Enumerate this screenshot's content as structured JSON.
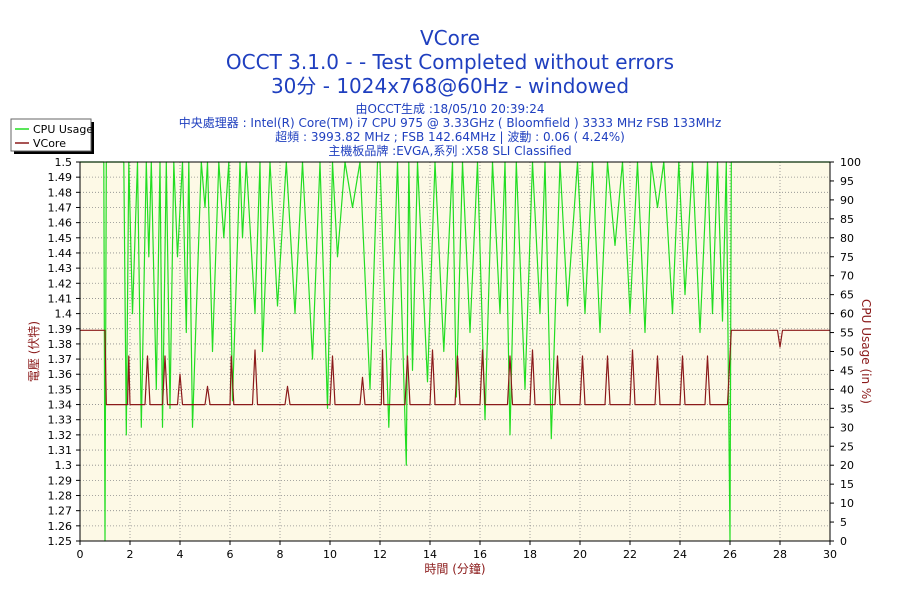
{
  "header": {
    "title": "VCore",
    "subtitle1": "OCCT 3.1.0 -  - Test Completed without errors",
    "subtitle2": "30分 - 1024x768@60Hz - windowed"
  },
  "info": {
    "line1": "由OCCT生成 :18/05/10 20:39:24",
    "line2": "中央處理器 : Intel(R) Core(TM) i7 CPU 975 @ 3.33GHz ( Bloomfield ) 3333 MHz FSB 133MHz",
    "line3": "超頻 : 3993.82 MHz ; FSB 142.64MHz | 波動 : 0.06 ( 4.24%)",
    "line4": "主機板品牌 :EVGA,系列 :X58 SLI Classified"
  },
  "colors": {
    "plot_bg": "#fdf9e6",
    "grid": "#8a8a8a",
    "cpu_usage": "#22dd22",
    "vcore": "#8b1a1a",
    "title": "#1f3fbf"
  },
  "chart_data": {
    "type": "line",
    "xlabel": "時間 (分鐘)",
    "ylabel": "電壓 (伏特)",
    "y2label": "CPU Usage (in %)",
    "xlim": [
      0,
      30
    ],
    "ylim": [
      1.25,
      1.5
    ],
    "y2lim": [
      0,
      100
    ],
    "xticks": [
      0,
      2,
      4,
      6,
      8,
      10,
      12,
      14,
      16,
      18,
      20,
      22,
      24,
      26,
      28,
      30
    ],
    "yticks": [
      "1.25",
      "1.26",
      "1.27",
      "1.28",
      "1.29",
      "1.3",
      "1.31",
      "1.32",
      "1.33",
      "1.34",
      "1.35",
      "1.36",
      "1.37",
      "1.38",
      "1.39",
      "1.4",
      "1.41",
      "1.42",
      "1.43",
      "1.44",
      "1.45",
      "1.46",
      "1.47",
      "1.48",
      "1.49",
      "1.5"
    ],
    "y2ticks": [
      "0",
      "5",
      "10",
      "15",
      "20",
      "25",
      "30",
      "35",
      "40",
      "45",
      "50",
      "55",
      "60",
      "65",
      "70",
      "75",
      "80",
      "85",
      "90",
      "95",
      "100"
    ],
    "grid": true,
    "legend_position": "top-left",
    "series": [
      {
        "name": "CPU Usage",
        "axis": "right",
        "x": [
          0,
          0.95,
          1.0,
          1.05,
          1.3,
          1.75,
          1.85,
          1.95,
          2.1,
          2.3,
          2.45,
          2.65,
          2.75,
          2.85,
          3.05,
          3.2,
          3.3,
          3.45,
          3.6,
          3.75,
          3.9,
          4.1,
          4.25,
          4.35,
          4.5,
          4.85,
          5.0,
          5.1,
          5.3,
          5.55,
          5.75,
          5.95,
          6.1,
          6.4,
          6.5,
          6.65,
          7.0,
          7.2,
          7.3,
          7.6,
          7.9,
          8.25,
          8.6,
          8.9,
          9.3,
          9.6,
          9.9,
          10.1,
          10.3,
          10.6,
          10.9,
          11.2,
          11.6,
          11.9,
          12.0,
          12.35,
          12.7,
          13.05,
          13.15,
          13.3,
          13.5,
          13.9,
          14.2,
          14.55,
          14.9,
          15.05,
          15.3,
          15.6,
          15.9,
          16.2,
          16.5,
          16.8,
          17.0,
          17.2,
          17.45,
          17.8,
          18.1,
          18.4,
          18.6,
          18.85,
          19.2,
          19.5,
          19.9,
          20.2,
          20.5,
          20.8,
          21.1,
          21.4,
          21.7,
          22.0,
          22.3,
          22.6,
          22.85,
          23.1,
          23.35,
          23.7,
          23.95,
          24.2,
          24.5,
          24.8,
          25.1,
          25.3,
          25.5,
          25.7,
          25.85,
          26.0,
          26.05,
          26.5,
          28.0,
          30.0
        ],
        "y": [
          100,
          100,
          0,
          100,
          100,
          100,
          28,
          100,
          60,
          100,
          30,
          100,
          75,
          100,
          40,
          100,
          30,
          100,
          35,
          100,
          75,
          100,
          55,
          100,
          30,
          100,
          88,
          100,
          50,
          100,
          80,
          100,
          37,
          100,
          80,
          100,
          60,
          100,
          50,
          100,
          62,
          100,
          60,
          100,
          48,
          100,
          35,
          100,
          75,
          100,
          88,
          100,
          40,
          100,
          100,
          30,
          100,
          20,
          100,
          45,
          100,
          42,
          100,
          50,
          100,
          38,
          100,
          55,
          100,
          32,
          100,
          60,
          100,
          28,
          100,
          40,
          100,
          60,
          100,
          27,
          100,
          62,
          100,
          60,
          100,
          55,
          100,
          78,
          100,
          60,
          100,
          55,
          100,
          88,
          100,
          60,
          100,
          65,
          100,
          55,
          100,
          60,
          100,
          58,
          100,
          0,
          100,
          100,
          100,
          100
        ]
      },
      {
        "name": "VCore",
        "axis": "left",
        "x": [
          0,
          1.0,
          1.05,
          1.1,
          1.5,
          1.9,
          1.95,
          2.0,
          2.3,
          2.6,
          2.7,
          2.8,
          3.1,
          3.3,
          3.4,
          3.5,
          3.75,
          3.9,
          4.0,
          4.1,
          4.5,
          5.0,
          5.1,
          5.2,
          5.5,
          6.0,
          6.05,
          6.15,
          6.5,
          6.9,
          7.0,
          7.1,
          7.5,
          8.2,
          8.3,
          8.4,
          9.0,
          10.0,
          10.1,
          10.2,
          10.6,
          11.2,
          11.3,
          11.4,
          11.9,
          12.05,
          12.1,
          12.15,
          12.6,
          13.0,
          13.1,
          13.2,
          13.6,
          14.0,
          14.1,
          14.2,
          14.6,
          15.0,
          15.1,
          15.2,
          15.6,
          16.0,
          16.1,
          16.2,
          16.7,
          17.1,
          17.2,
          17.3,
          17.8,
          18.0,
          18.1,
          18.2,
          18.6,
          19.0,
          19.1,
          19.2,
          19.6,
          20.0,
          20.1,
          20.2,
          20.6,
          21.0,
          21.1,
          21.2,
          21.6,
          22.0,
          22.1,
          22.2,
          22.6,
          23.0,
          23.1,
          23.2,
          23.6,
          24.0,
          24.1,
          24.2,
          24.6,
          25.0,
          25.1,
          25.2,
          25.5,
          25.9,
          26.05,
          26.1,
          27.9,
          28.0,
          28.1,
          30.0
        ],
        "y": [
          1.389,
          1.389,
          1.34,
          1.34,
          1.34,
          1.34,
          1.372,
          1.34,
          1.34,
          1.34,
          1.372,
          1.34,
          1.34,
          1.34,
          1.372,
          1.34,
          1.34,
          1.34,
          1.36,
          1.34,
          1.34,
          1.34,
          1.352,
          1.34,
          1.34,
          1.34,
          1.372,
          1.34,
          1.34,
          1.34,
          1.376,
          1.34,
          1.34,
          1.34,
          1.352,
          1.34,
          1.34,
          1.34,
          1.372,
          1.34,
          1.34,
          1.34,
          1.358,
          1.34,
          1.34,
          1.34,
          1.376,
          1.34,
          1.34,
          1.34,
          1.372,
          1.34,
          1.34,
          1.34,
          1.376,
          1.34,
          1.34,
          1.34,
          1.372,
          1.34,
          1.34,
          1.34,
          1.376,
          1.34,
          1.34,
          1.34,
          1.372,
          1.34,
          1.34,
          1.34,
          1.376,
          1.34,
          1.34,
          1.34,
          1.372,
          1.34,
          1.34,
          1.34,
          1.372,
          1.34,
          1.34,
          1.34,
          1.372,
          1.34,
          1.34,
          1.34,
          1.376,
          1.34,
          1.34,
          1.34,
          1.372,
          1.34,
          1.34,
          1.34,
          1.372,
          1.34,
          1.34,
          1.34,
          1.372,
          1.34,
          1.34,
          1.34,
          1.389,
          1.389,
          1.389,
          1.378,
          1.389,
          1.389
        ]
      }
    ]
  }
}
